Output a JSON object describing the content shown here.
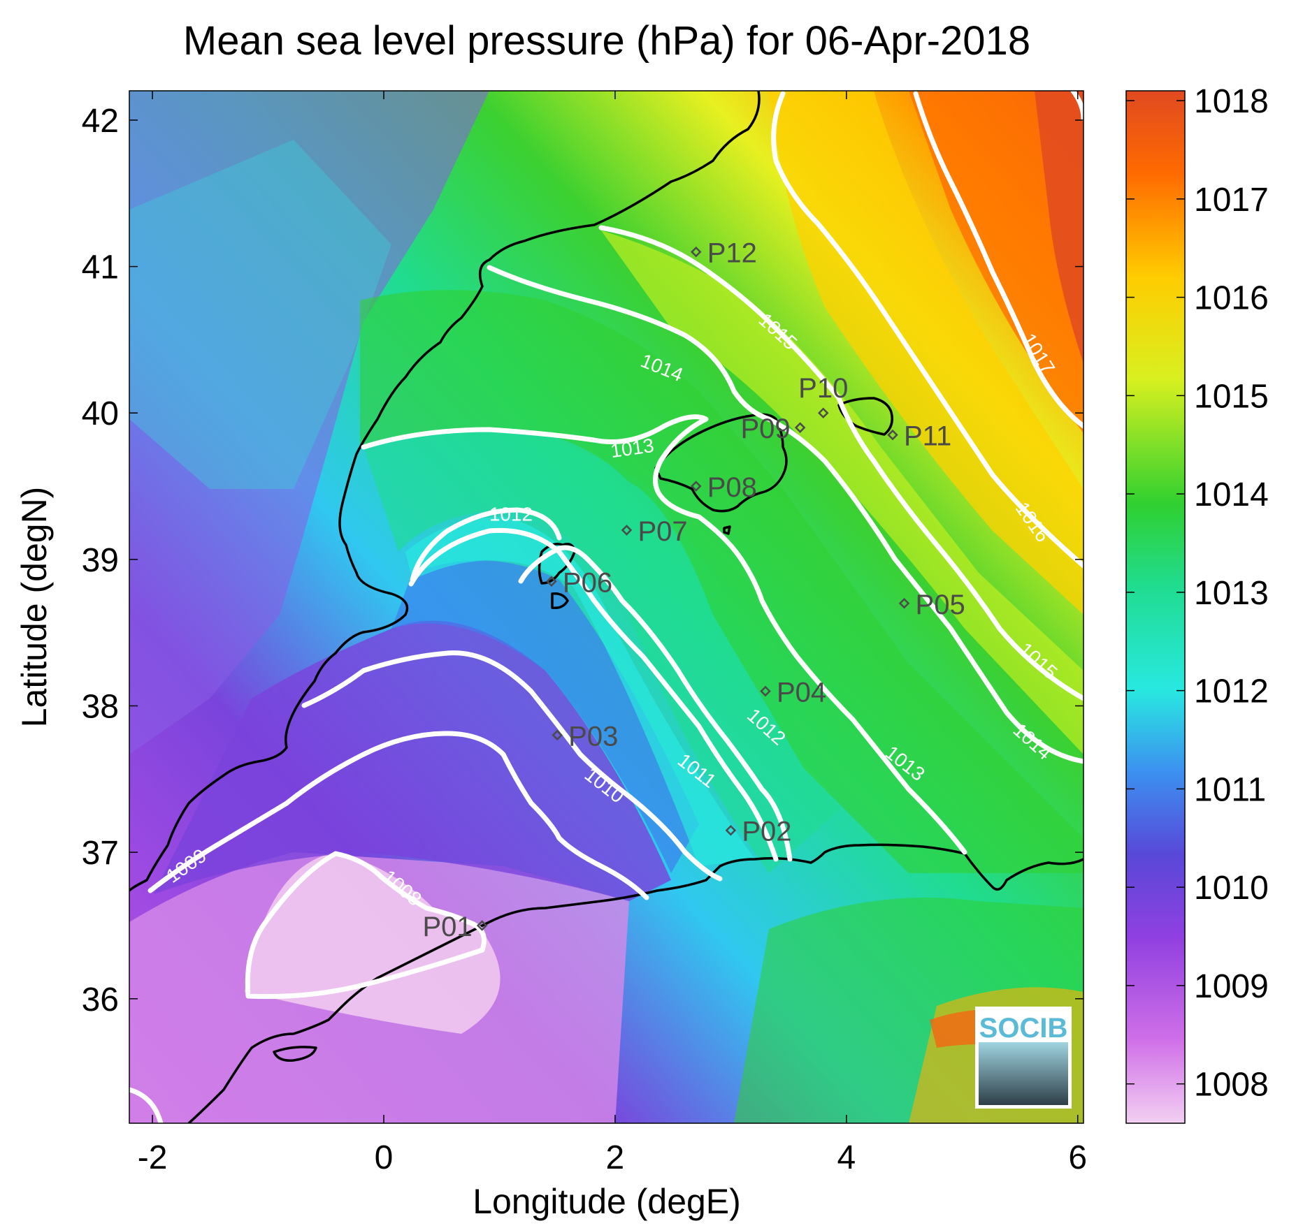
{
  "title": "Mean sea level pressure (hPa) for 06-Apr-2018",
  "chart_data": {
    "type": "heatmap",
    "variable": "Mean sea level pressure",
    "units": "hPa",
    "date": "06-Apr-2018",
    "xlabel": "Longitude (degE)",
    "ylabel": "Latitude (degN)",
    "xlim": [
      -2.2,
      6.05
    ],
    "ylim": [
      35.15,
      42.2
    ],
    "xticks": [
      -2,
      0,
      2,
      4,
      6
    ],
    "yticks": [
      36,
      37,
      38,
      39,
      40,
      41,
      42
    ],
    "colorbar": {
      "min": 1007.6,
      "max": 1018.1,
      "ticks": [
        1008,
        1009,
        1010,
        1011,
        1012,
        1013,
        1014,
        1015,
        1016,
        1017,
        1018
      ],
      "colormap": [
        "#f0c8f0",
        "#c04ee8",
        "#7040d8",
        "#3c88f0",
        "#28e8e0",
        "#20d890",
        "#30d030",
        "#c8f020",
        "#ffd000",
        "#ff7000",
        "#e84a20"
      ]
    },
    "contour_labels": [
      {
        "text": "1008",
        "lon": 0.15,
        "lat": 36.75,
        "angle": 40
      },
      {
        "text": "1009",
        "lon": -1.7,
        "lat": 36.9,
        "angle": -35
      },
      {
        "text": "1010",
        "lon": 1.9,
        "lat": 37.45,
        "angle": 38
      },
      {
        "text": "1011",
        "lon": 2.7,
        "lat": 37.55,
        "angle": 38
      },
      {
        "text": "1012",
        "lon": 3.3,
        "lat": 37.85,
        "angle": 42
      },
      {
        "text": "1012",
        "lon": 1.1,
        "lat": 39.3,
        "angle": 0
      },
      {
        "text": "1013",
        "lon": 2.15,
        "lat": 39.75,
        "angle": -8
      },
      {
        "text": "1013",
        "lon": 4.5,
        "lat": 37.6,
        "angle": 38
      },
      {
        "text": "1014",
        "lon": 2.4,
        "lat": 40.3,
        "angle": 22
      },
      {
        "text": "1014",
        "lon": 5.6,
        "lat": 37.75,
        "angle": 42
      },
      {
        "text": "1015",
        "lon": 3.4,
        "lat": 40.55,
        "angle": 42
      },
      {
        "text": "1015",
        "lon": 5.65,
        "lat": 38.3,
        "angle": 42
      },
      {
        "text": "1016",
        "lon": 5.6,
        "lat": 39.25,
        "angle": 55
      },
      {
        "text": "1017",
        "lon": 5.65,
        "lat": 40.4,
        "angle": 58
      }
    ],
    "stations": [
      {
        "name": "P01",
        "lon": 0.85,
        "lat": 36.5,
        "label_side": "left"
      },
      {
        "name": "P02",
        "lon": 3.0,
        "lat": 37.15,
        "label_side": "right"
      },
      {
        "name": "P03",
        "lon": 1.5,
        "lat": 37.8,
        "label_side": "right"
      },
      {
        "name": "P04",
        "lon": 3.3,
        "lat": 38.1,
        "label_side": "right"
      },
      {
        "name": "P05",
        "lon": 4.5,
        "lat": 38.7,
        "label_side": "right"
      },
      {
        "name": "P06",
        "lon": 1.45,
        "lat": 38.85,
        "label_side": "right"
      },
      {
        "name": "P07",
        "lon": 2.1,
        "lat": 39.2,
        "label_side": "right"
      },
      {
        "name": "P08",
        "lon": 2.7,
        "lat": 39.5,
        "label_side": "right"
      },
      {
        "name": "P09",
        "lon": 3.6,
        "lat": 39.9,
        "label_side": "left"
      },
      {
        "name": "P10",
        "lon": 3.8,
        "lat": 40.0,
        "label_side": "above"
      },
      {
        "name": "P11",
        "lon": 4.4,
        "lat": 39.85,
        "label_side": "right"
      },
      {
        "name": "P12",
        "lon": 2.7,
        "lat": 41.1,
        "label_side": "right"
      }
    ]
  },
  "logo": {
    "text": "SOCIB"
  }
}
